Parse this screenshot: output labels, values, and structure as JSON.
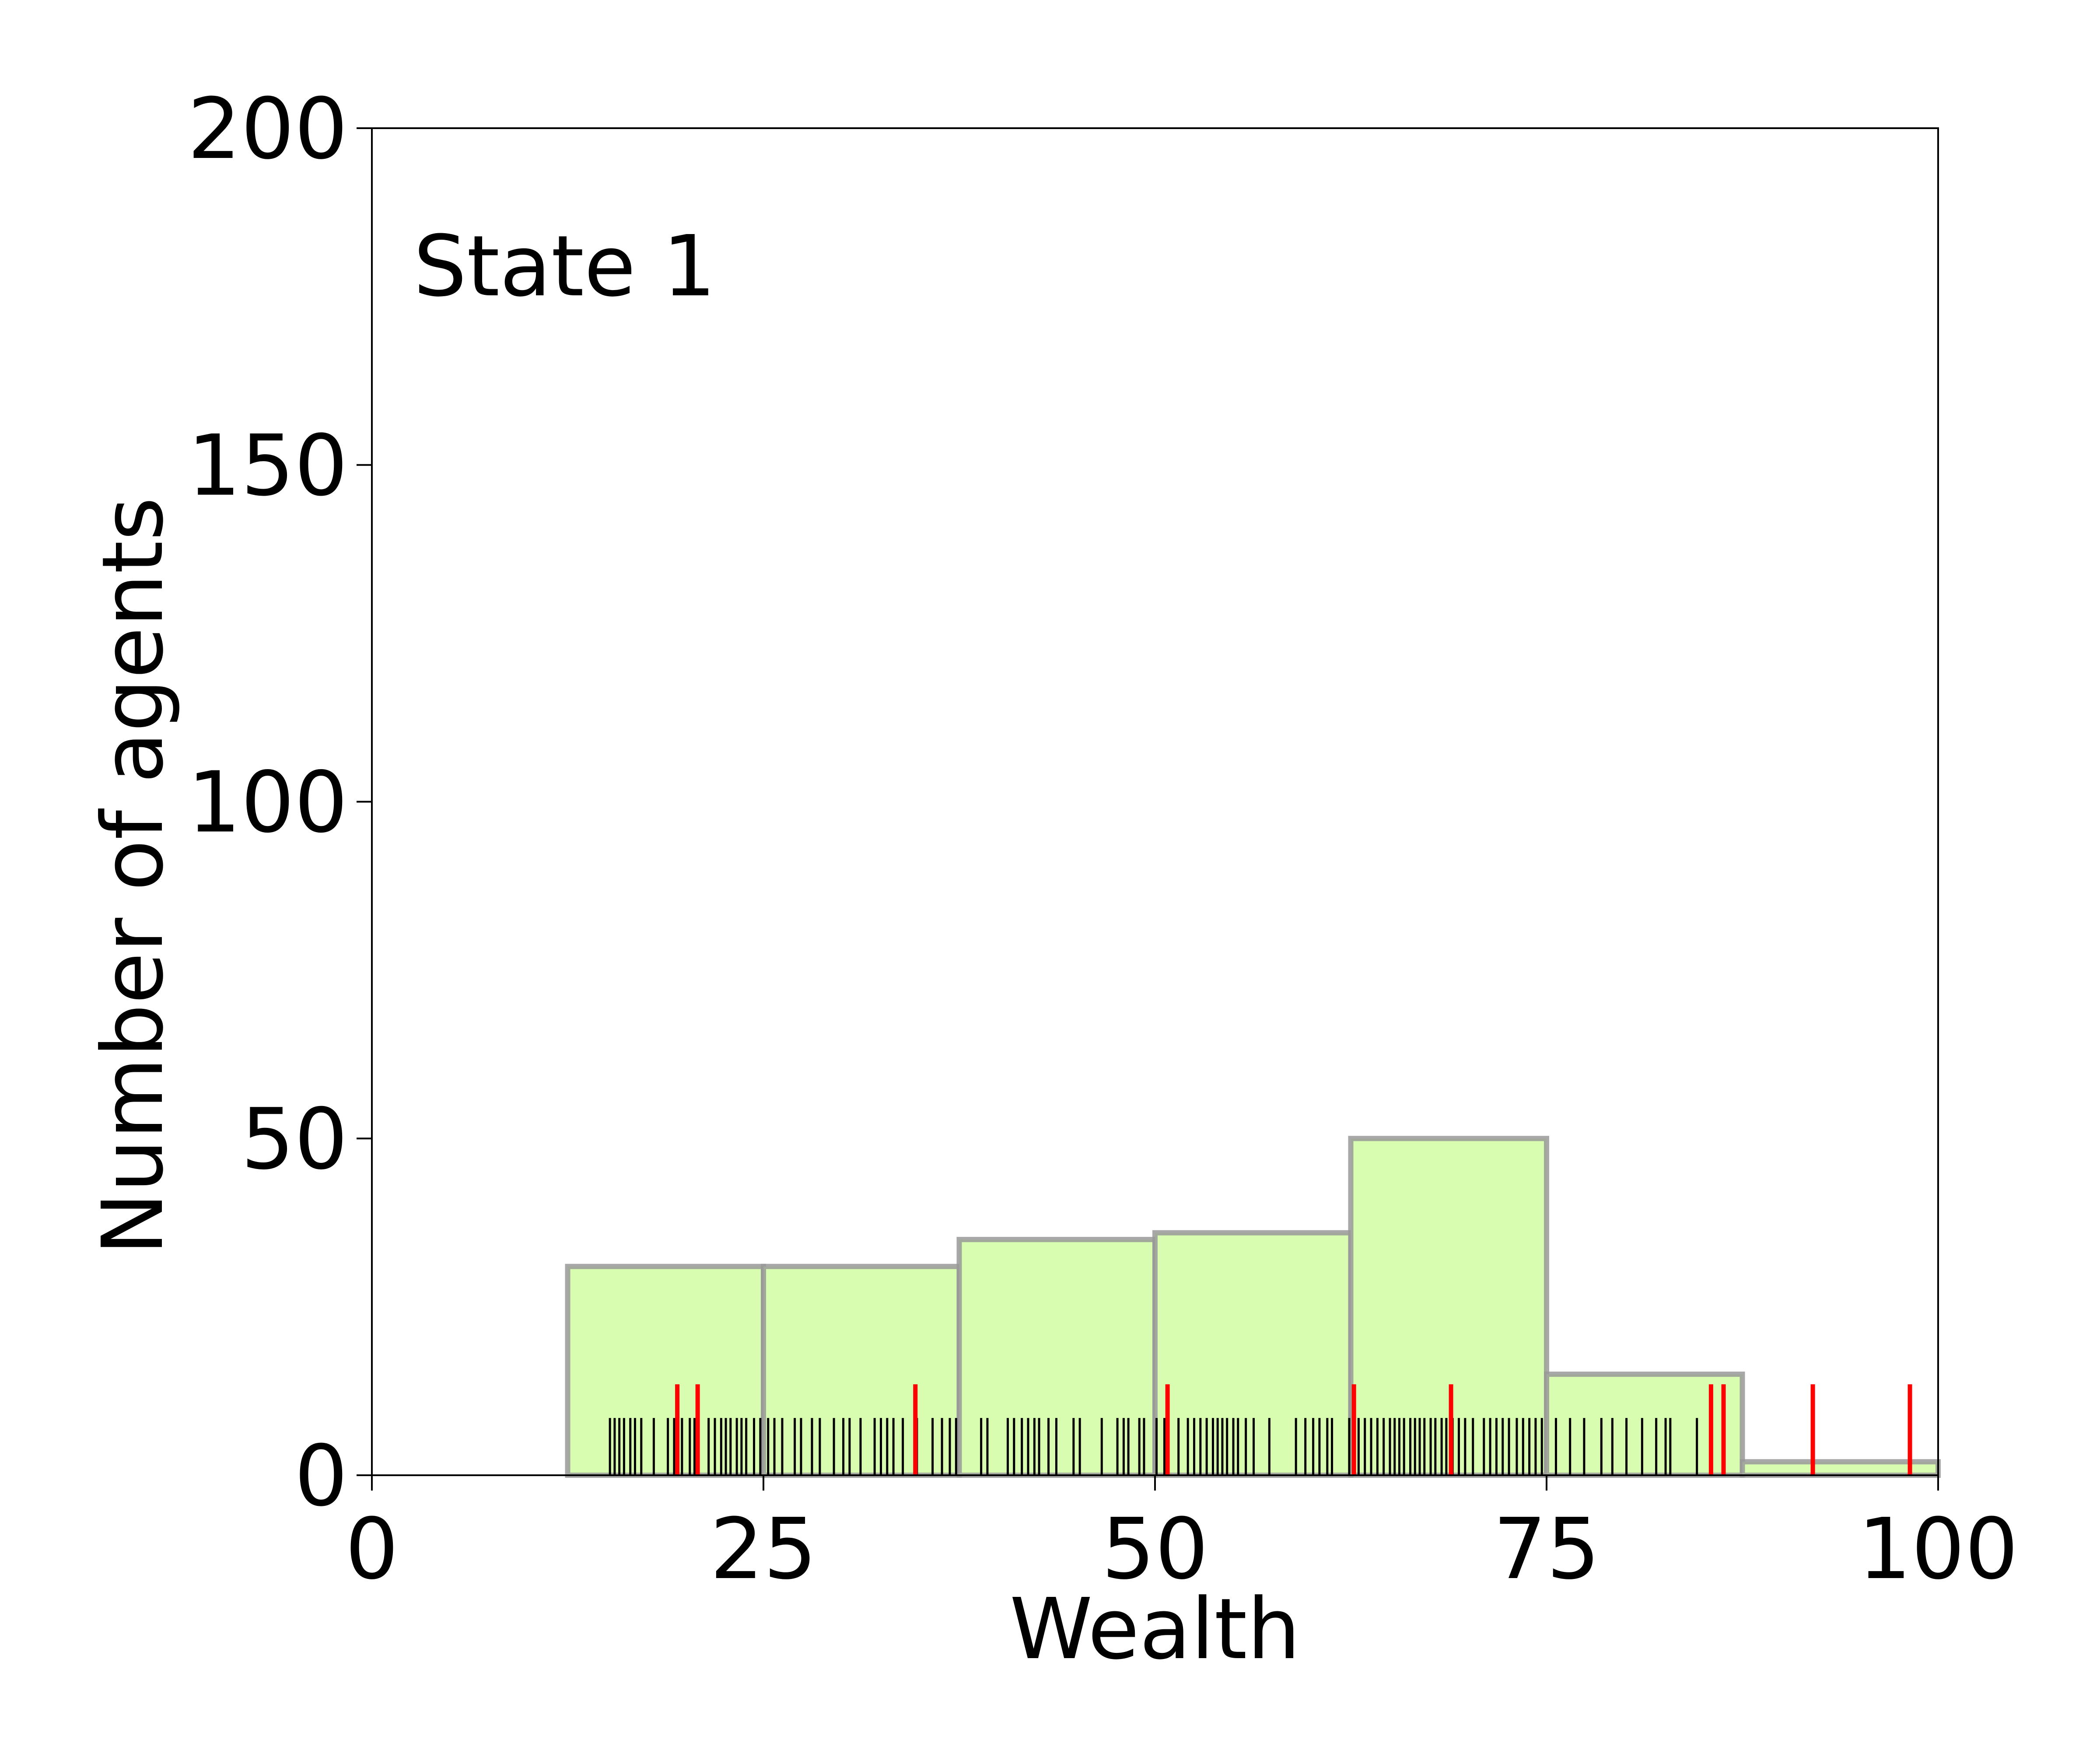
{
  "chart_data": {
    "type": "bar",
    "subtype": "histogram-with-rug",
    "annotation": "State 1",
    "xlabel": "Wealth",
    "ylabel": "Number of agents",
    "xlim": [
      0,
      100
    ],
    "ylim": [
      0,
      200
    ],
    "xticks": [
      0,
      25,
      50,
      75,
      100
    ],
    "yticks": [
      0,
      50,
      100,
      150,
      200
    ],
    "grid": false,
    "bins": [
      {
        "start": 0,
        "end": 12.5,
        "count": 0
      },
      {
        "start": 12.5,
        "end": 25,
        "count": 31
      },
      {
        "start": 25,
        "end": 37.5,
        "count": 31
      },
      {
        "start": 37.5,
        "end": 50,
        "count": 35
      },
      {
        "start": 50,
        "end": 62.5,
        "count": 36
      },
      {
        "start": 62.5,
        "end": 75,
        "count": 50
      },
      {
        "start": 75,
        "end": 87.5,
        "count": 15
      },
      {
        "start": 87.5,
        "end": 100,
        "count": 2
      }
    ],
    "rug_black": [
      15.2,
      15.5,
      15.8,
      16.1,
      16.5,
      16.8,
      17.2,
      18.0,
      18.9,
      19.3,
      19.8,
      20.3,
      20.6,
      21.5,
      21.9,
      22.3,
      22.6,
      22.9,
      23.3,
      23.6,
      23.9,
      24.4,
      24.8,
      25.3,
      25.7,
      26.2,
      27.0,
      27.4,
      28.1,
      28.6,
      29.5,
      30.1,
      30.5,
      31.2,
      32.1,
      32.5,
      32.9,
      33.3,
      33.9,
      34.8,
      35.8,
      36.4,
      36.9,
      37.3,
      38.9,
      39.3,
      40.6,
      41.0,
      41.5,
      41.9,
      42.3,
      42.6,
      43.2,
      43.7,
      44.8,
      45.2,
      46.6,
      47.6,
      48.0,
      48.3,
      49.0,
      49.3,
      50.1,
      50.6,
      51.5,
      52.1,
      52.5,
      52.9,
      53.3,
      53.7,
      54.0,
      54.3,
      54.6,
      55.0,
      55.3,
      55.8,
      56.3,
      57.3,
      59.0,
      59.6,
      60.1,
      60.5,
      61.0,
      61.3,
      62.4,
      62.7,
      63.0,
      63.4,
      63.8,
      64.2,
      64.6,
      65.0,
      65.3,
      65.6,
      65.9,
      66.3,
      66.6,
      66.9,
      67.2,
      67.6,
      67.9,
      68.3,
      68.6,
      69.0,
      69.4,
      69.8,
      70.3,
      71.0,
      71.4,
      71.8,
      72.2,
      72.6,
      73.1,
      73.5,
      73.9,
      74.3,
      74.7,
      75.6,
      76.5,
      77.4,
      78.5,
      79.2,
      80.1,
      81.1,
      82.0,
      82.6,
      82.9,
      84.6
    ],
    "rug_red": [
      19.5,
      20.8,
      34.7,
      50.8,
      62.7,
      68.9,
      85.5,
      86.3,
      92.0,
      98.2
    ],
    "colors": {
      "bar_fill": "#d8fcb0",
      "bar_edge": "#999999",
      "rug_black": "#000000",
      "rug_red": "#ff0000"
    }
  }
}
